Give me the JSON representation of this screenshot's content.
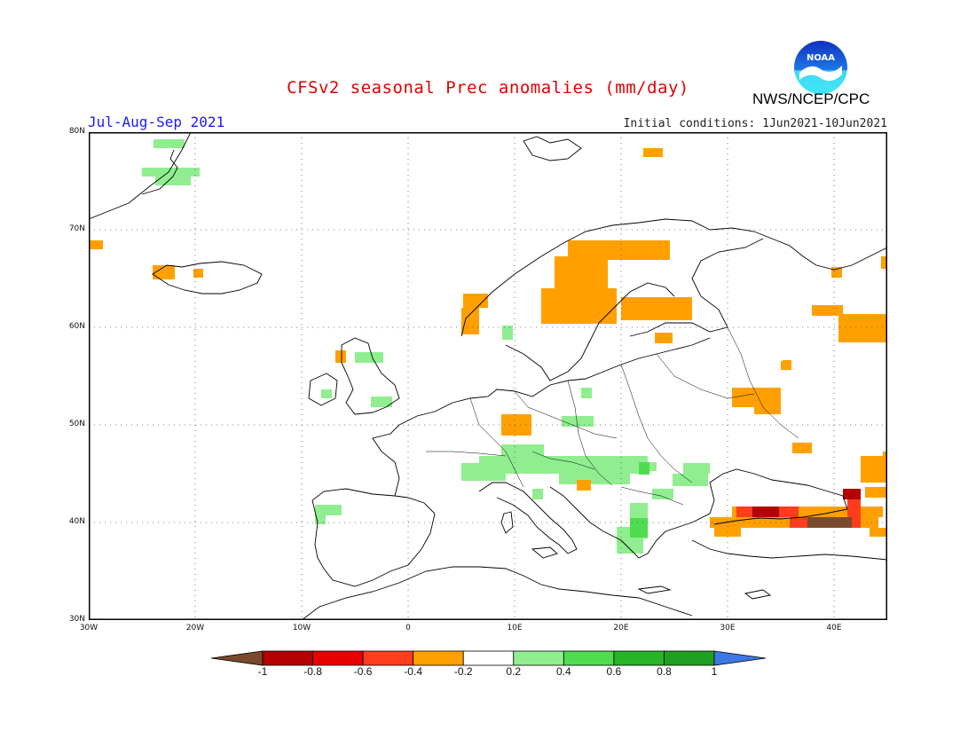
{
  "title": "CFSv2 seasonal Prec anomalies (mm/day)",
  "agency": "NWS/NCEP/CPC",
  "period": "Jul-Aug-Sep 2021",
  "initial_conditions": "Initial conditions: 1Jun2021-10Jun2021",
  "logo": {
    "name": "noaa-logo",
    "text": "NOAA"
  },
  "map": {
    "lon_range": [
      -30,
      45
    ],
    "lat_range": [
      30,
      80
    ],
    "lat_ticks": [
      "80N",
      "70N",
      "60N",
      "50N",
      "40N",
      "30N"
    ],
    "lon_ticks": [
      "30W",
      "20W",
      "10W",
      "0",
      "10E",
      "20E",
      "30E",
      "40E"
    ],
    "grid": "dotted"
  },
  "colorbar": {
    "labels": [
      "-1",
      "-0.8",
      "-0.6",
      "-0.4",
      "-0.2",
      "0.2",
      "0.4",
      "0.6",
      "0.8",
      "1"
    ],
    "colors": [
      "#7a4a2a",
      "#b40000",
      "#e60000",
      "#ff3c1e",
      "#ffa000",
      "#ffffff",
      "#90ee90",
      "#50dc50",
      "#28b428",
      "#20a020",
      "#3c78e6"
    ]
  },
  "colors": {
    "dry_light": "#ffa000",
    "dry_mid": "#ff3c1e",
    "dry_strong": "#b40000",
    "dry_extreme": "#7a4a2a",
    "wet_light": "#90ee90",
    "wet_mid": "#50dc50"
  }
}
